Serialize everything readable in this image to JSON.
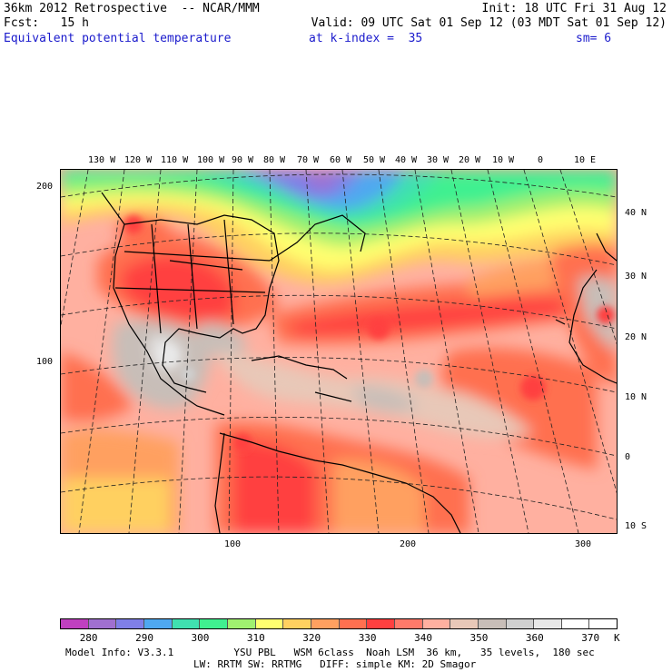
{
  "header": {
    "model_title": "36km 2012 Retrospective  -- NCAR/MMM",
    "init_text": "Init: 18 UTC Fri 31 Aug 12",
    "fcst_text": "Fcst:   15 h",
    "valid_text": "Valid: 09 UTC Sat 01 Sep 12 (03 MDT Sat 01 Sep 12)",
    "field_text": "Equivalent potential temperature",
    "level_text": "at k-index =  35",
    "smooth_text": "sm= 6"
  },
  "map": {
    "longitude_labels": [
      "130 W",
      "120 W",
      "110 W",
      "100 W",
      "90 W",
      "80 W",
      "70 W",
      "60 W",
      "50 W",
      "40 W",
      "30 W",
      "20 W",
      "10 W",
      "0",
      "10 E"
    ],
    "latitude_labels": [
      "40 N",
      "30 N",
      "20 N",
      "10 N",
      "0",
      "10 S"
    ],
    "left_axis_labels": [
      "200",
      "100"
    ],
    "bottom_axis_labels": [
      "100",
      "200",
      "300"
    ]
  },
  "colorbar": {
    "unit": "K",
    "tick_labels": [
      "280",
      "290",
      "300",
      "310",
      "320",
      "330",
      "340",
      "350",
      "360",
      "370"
    ],
    "colors": [
      "#c040c0",
      "#a070d0",
      "#7f7fe8",
      "#4fa8f0",
      "#40e0b0",
      "#40f090",
      "#a0f070",
      "#ffff70",
      "#ffd060",
      "#ffa060",
      "#ff7050",
      "#ff4040",
      "#ff7a6a",
      "#ffb0a0",
      "#e8c8b8",
      "#c8beb8",
      "#d0d0d0",
      "#e8e8e8",
      "#ffffff",
      "#ffffff"
    ]
  },
  "footer": {
    "line1": "Model Info: V3.3.1          YSU PBL   WSM 6class  Noah LSM  36 km,   35 levels,  180 sec",
    "line2": "LW: RRTM SW: RRTMG   DIFF: simple KM: 2D Smagor"
  }
}
